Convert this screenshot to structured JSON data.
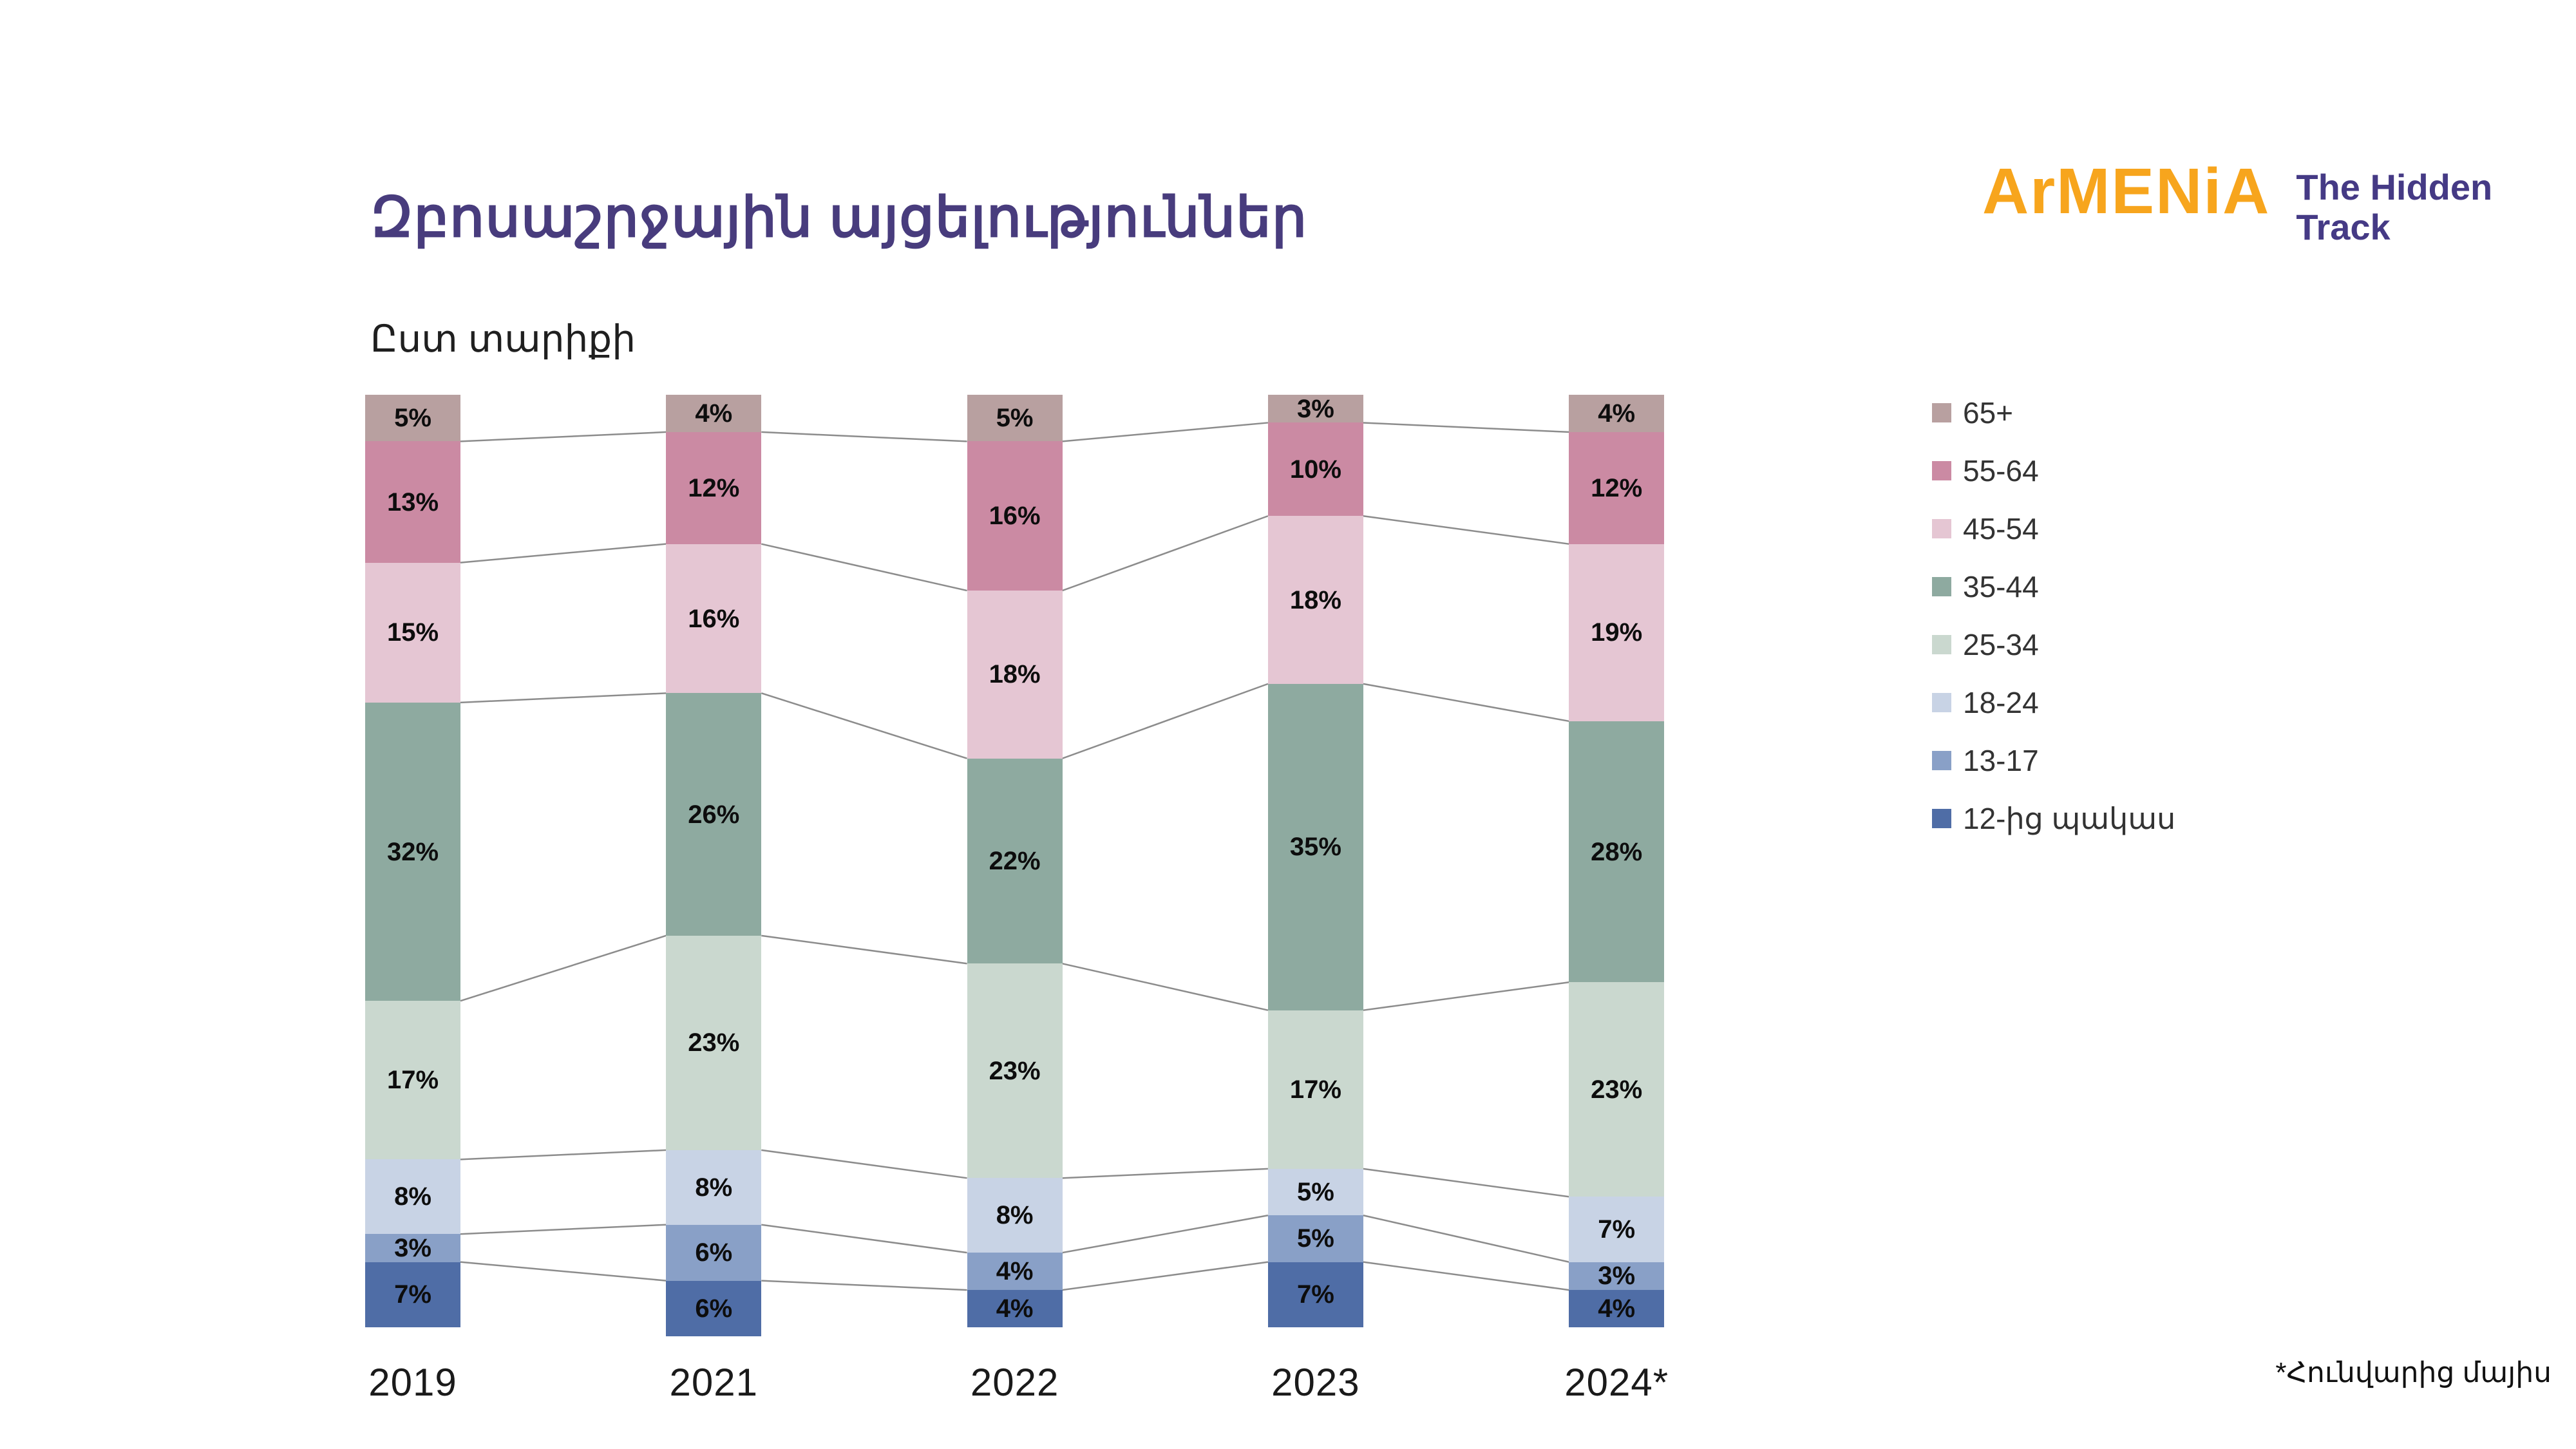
{
  "header": {
    "title": "Զբոսաշրջային այցելություններ",
    "subtitle": "Ըստ տարիքի"
  },
  "logo": {
    "brand": "ArMENiA",
    "tagline_line1": "The Hidden",
    "tagline_line2": "Track"
  },
  "footnote": "*Հունվարից մայիս",
  "colors": {
    "title": "#483c7d",
    "brand_orange": "#f7a51d",
    "brand_purple": "#453a85",
    "connector": "#8c8c8c",
    "segment_label": "#0d0d0d",
    "background": "#ffffff"
  },
  "chart_data": {
    "type": "bar",
    "variant": "stacked-100-percent",
    "stack_order": "top-to-bottom",
    "categories": [
      "2019",
      "2021",
      "2022",
      "2023",
      "2024*"
    ],
    "series": [
      {
        "name": "65+",
        "color": "#b8a0a0",
        "values": [
          5,
          4,
          5,
          3,
          4
        ]
      },
      {
        "name": "55-64",
        "color": "#cb8aa3",
        "values": [
          13,
          12,
          16,
          10,
          12
        ]
      },
      {
        "name": "45-54",
        "color": "#e5c6d3",
        "values": [
          15,
          16,
          18,
          18,
          19
        ]
      },
      {
        "name": "35-44",
        "color": "#8eaaa0",
        "values": [
          32,
          26,
          22,
          35,
          28
        ]
      },
      {
        "name": "25-34",
        "color": "#cad8cf",
        "values": [
          17,
          23,
          23,
          17,
          23
        ]
      },
      {
        "name": "18-24",
        "color": "#c8d3e5",
        "values": [
          8,
          8,
          8,
          5,
          7
        ]
      },
      {
        "name": "13-17",
        "color": "#89a0c7",
        "values": [
          3,
          6,
          4,
          5,
          3
        ]
      },
      {
        "name": "12-ից պակաս",
        "color": "#4f6da6",
        "values": [
          7,
          6,
          4,
          7,
          4
        ]
      }
    ],
    "value_suffix": "%",
    "ylim": [
      0,
      100
    ],
    "grid": false,
    "legend_position": "right",
    "connector_lines": true
  }
}
